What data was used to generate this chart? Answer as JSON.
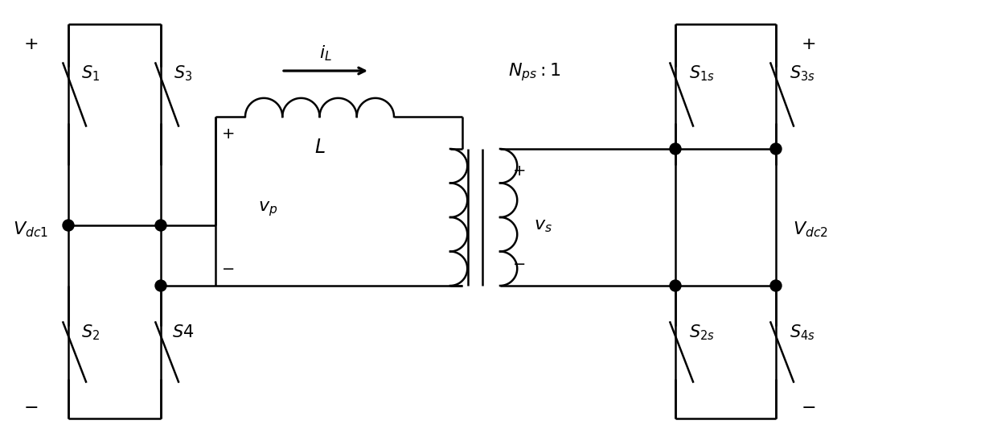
{
  "fig_width": 12.4,
  "fig_height": 5.48,
  "dpi": 100,
  "bg_color": "#ffffff",
  "line_color": "#000000",
  "lw": 1.8
}
